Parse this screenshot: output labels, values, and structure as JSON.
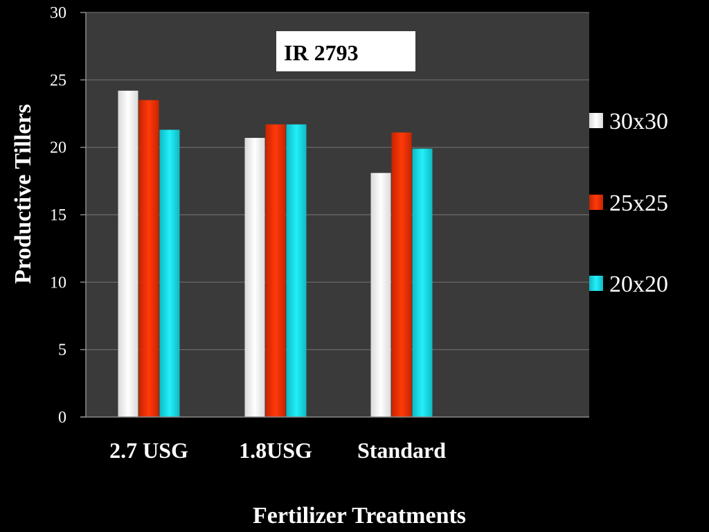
{
  "chart_data": {
    "type": "bar",
    "title": "IR 2793",
    "xlabel": "Fertilizer Treatments",
    "ylabel": "Productive Tillers",
    "categories": [
      "2.7 USG",
      "1.8USG",
      "Standard"
    ],
    "ylim": [
      0,
      30
    ],
    "yticks": [
      "0",
      "5",
      "10",
      "15",
      "20",
      "25",
      "30"
    ],
    "grid": true,
    "legend_position": "right",
    "series": [
      {
        "name": "30x30",
        "color": "#ffffff",
        "values": [
          24.2,
          20.7,
          18.1
        ]
      },
      {
        "name": "25x25",
        "color": "#ff3300",
        "values": [
          23.5,
          21.7,
          21.1
        ]
      },
      {
        "name": "20x20",
        "color": "#17e6f0",
        "values": [
          21.3,
          21.7,
          19.9
        ]
      }
    ]
  },
  "colors": {
    "background": "#000000",
    "plot_area": "#3a3a3a",
    "gridline": "#6e6e6e"
  }
}
